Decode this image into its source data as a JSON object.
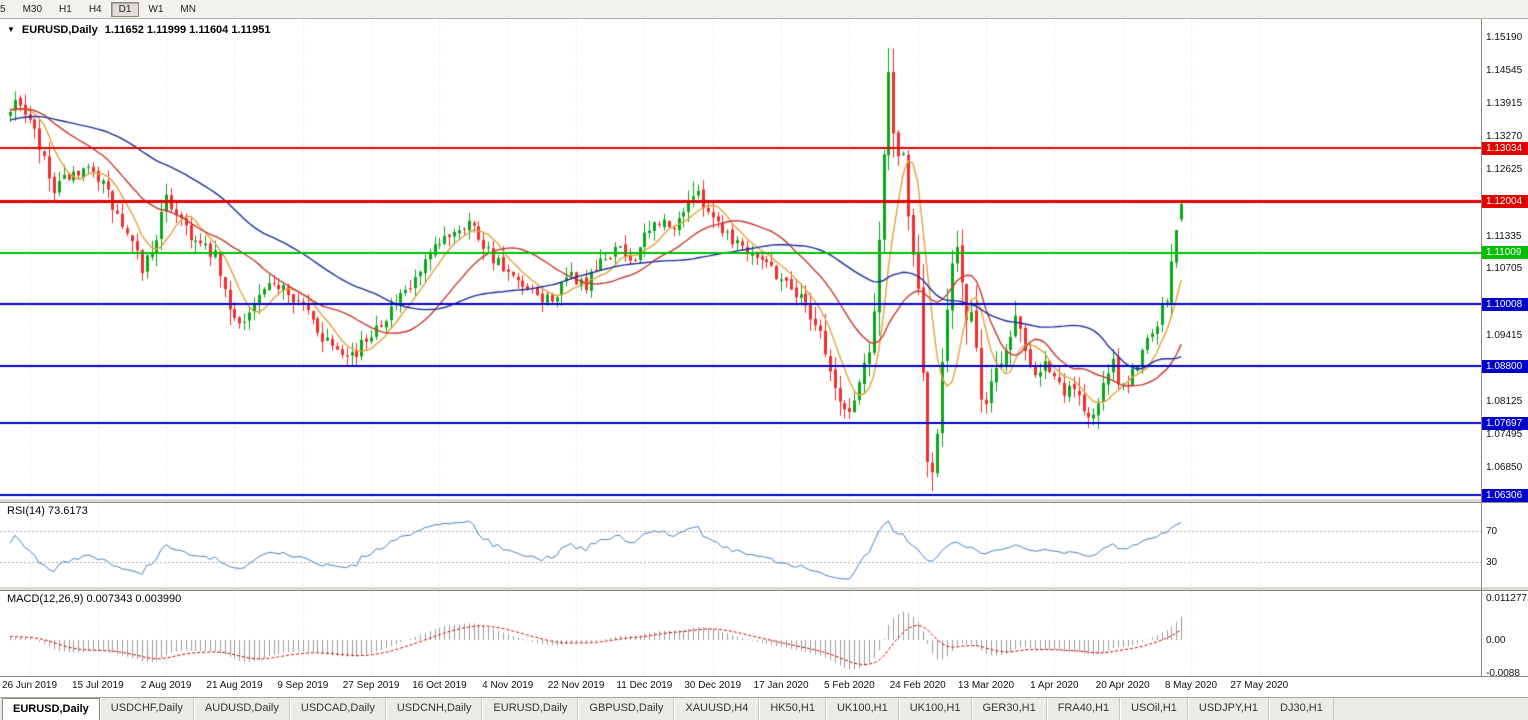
{
  "toolbar": {
    "items": [
      {
        "label": "5",
        "cut": true
      },
      {
        "label": "M30"
      },
      {
        "label": "H1"
      },
      {
        "label": "H4"
      },
      {
        "label": "D1",
        "active": true
      },
      {
        "label": "W1"
      },
      {
        "label": "MN"
      }
    ]
  },
  "chart_header": {
    "menu_icon": "▼",
    "symbol": "EURUSD,Daily",
    "ohlc": "1.11652 1.11999 1.11604 1.11951"
  },
  "indicators": {
    "rsi_label": "RSI(14) 73.6173",
    "macd_label": "MACD(12,26,9) 0.007343 0.003990",
    "macd_axis": [
      {
        "label": "0.011277",
        "value": 0.011277
      },
      {
        "label": "0.00",
        "value": 0
      },
      {
        "label": "-0.0088",
        "value": -0.0088
      }
    ]
  },
  "price_axis": {
    "ticks": [
      {
        "label": "1.15190",
        "price": 1.1519
      },
      {
        "label": "1.14545",
        "price": 1.14545
      },
      {
        "label": "1.13915",
        "price": 1.13915
      },
      {
        "label": "1.13270",
        "price": 1.1327
      },
      {
        "label": "1.12625",
        "price": 1.12625
      },
      {
        "label": "1.11335",
        "price": 1.11335
      },
      {
        "label": "1.10705",
        "price": 1.10705
      },
      {
        "label": "1.09415",
        "price": 1.09415
      },
      {
        "label": "1.08125",
        "price": 1.08125
      },
      {
        "label": "1.07495",
        "price": 1.07495
      },
      {
        "label": "1.06850",
        "price": 1.0685
      }
    ]
  },
  "colors": {
    "bull": "#0DA41A",
    "bear": "#EF2F2F",
    "grid": "#DCDCDC",
    "rsi": "#4A7FBE",
    "macd_hist": "#9A9A9A",
    "macd_signal": "#CC0000"
  },
  "chart_data": {
    "type": "candlestick",
    "symbol": "EURUSD",
    "timeframe": "Daily",
    "current_ohlc": {
      "open": 1.11652,
      "high": 1.11999,
      "low": 1.11604,
      "close": 1.11951
    },
    "price_range": {
      "top": 1.15539,
      "bottom": 1.06248
    },
    "seed": 7,
    "start_index": -50,
    "last_index": 240,
    "date_first_index": 4,
    "date_step": 14,
    "dates": [
      "26 Jun 2019",
      "15 Jul 2019",
      "2 Aug 2019",
      "21 Aug 2019",
      "9 Sep 2019",
      "27 Sep 2019",
      "16 Oct 2019",
      "4 Nov 2019",
      "22 Nov 2019",
      "11 Dec 2019",
      "30 Dec 2019",
      "17 Jan 2020",
      "5 Feb 2020",
      "24 Feb 2020",
      "13 Mar 2020",
      "1 Apr 2020",
      "20 Apr 2020",
      "8 May 2020",
      "27 May 2020"
    ],
    "levels": [
      {
        "price": 1.13034,
        "badge": "1.13034",
        "color": "#E00000",
        "width": 2
      },
      {
        "price": 1.12004,
        "badge": "1.12004",
        "color": "#E00000",
        "width": 3
      },
      {
        "price": 1.11009,
        "badge": "1.11009",
        "color": "#00BE00",
        "width": 2
      },
      {
        "price": 1.10008,
        "badge": "1.10008",
        "color": "#0000C8",
        "width": 2
      },
      {
        "price": 1.088,
        "badge": "1.08800",
        "color": "#0000C8",
        "width": 2
      },
      {
        "price": 1.07697,
        "badge": "1.07697",
        "color": "#0000C8",
        "width": 2
      },
      {
        "price": 1.06306,
        "badge": "1.06306",
        "color": "#0000C8",
        "width": 2
      }
    ],
    "moving_averages": [
      {
        "name": "fast",
        "period": 7,
        "color": "#E2A33C"
      },
      {
        "name": "mid",
        "period": 20,
        "color": "#C8392F"
      },
      {
        "name": "slow",
        "period": 45,
        "color": "#1C2D9C"
      }
    ],
    "rsi": {
      "period": 14,
      "levels": [
        70,
        30
      ],
      "current": 73.6173
    },
    "macd": {
      "fast": 12,
      "slow": 26,
      "signal": 9,
      "current_macd": 0.007343,
      "current_signal": 0.00399
    },
    "close_anchors": [
      [
        -50,
        1.128
      ],
      [
        -30,
        1.135
      ],
      [
        -15,
        1.139
      ],
      [
        -5,
        1.1375
      ],
      [
        0,
        1.1378
      ],
      [
        2,
        1.1393
      ],
      [
        5,
        1.133
      ],
      [
        9,
        1.1215
      ],
      [
        12,
        1.1252
      ],
      [
        14,
        1.1243
      ],
      [
        17,
        1.1268
      ],
      [
        20,
        1.121
      ],
      [
        24,
        1.113
      ],
      [
        27,
        1.1072
      ],
      [
        29,
        1.1105
      ],
      [
        32,
        1.12
      ],
      [
        35,
        1.117
      ],
      [
        38,
        1.112
      ],
      [
        42,
        1.1092
      ],
      [
        45,
        1.0985
      ],
      [
        48,
        1.0968
      ],
      [
        52,
        1.1025
      ],
      [
        56,
        1.1042
      ],
      [
        60,
        1.0995
      ],
      [
        64,
        1.094
      ],
      [
        68,
        1.0915
      ],
      [
        71,
        1.0902
      ],
      [
        74,
        1.095
      ],
      [
        78,
        1.099
      ],
      [
        82,
        1.103
      ],
      [
        86,
        1.109
      ],
      [
        90,
        1.114
      ],
      [
        94,
        1.1162
      ],
      [
        97,
        1.112
      ],
      [
        101,
        1.1065
      ],
      [
        105,
        1.103
      ],
      [
        109,
        1.101
      ],
      [
        112,
        1.1018
      ],
      [
        115,
        1.1055
      ],
      [
        118,
        1.1035
      ],
      [
        121,
        1.1078
      ],
      [
        124,
        1.111
      ],
      [
        127,
        1.1085
      ],
      [
        130,
        1.1125
      ],
      [
        133,
        1.1165
      ],
      [
        136,
        1.114
      ],
      [
        138,
        1.119
      ],
      [
        140,
        1.1215
      ],
      [
        142,
        1.12
      ],
      [
        145,
        1.116
      ],
      [
        148,
        1.113
      ],
      [
        151,
        1.1108
      ],
      [
        154,
        1.1095
      ],
      [
        157,
        1.106
      ],
      [
        160,
        1.1035
      ],
      [
        163,
        1.1
      ],
      [
        166,
        1.095
      ],
      [
        168,
        1.0868
      ],
      [
        170,
        1.0805
      ],
      [
        172,
        1.079
      ],
      [
        174,
        1.085
      ],
      [
        176,
        1.092
      ],
      [
        177,
        1.0995
      ],
      [
        178,
        1.113
      ],
      [
        179,
        1.129
      ],
      [
        180,
        1.144
      ],
      [
        181,
        1.134
      ],
      [
        182,
        1.127
      ],
      [
        183,
        1.1285
      ],
      [
        184,
        1.116
      ],
      [
        185,
        1.111
      ],
      [
        186,
        1.102
      ],
      [
        187,
        1.087
      ],
      [
        188,
        1.07
      ],
      [
        189,
        1.066
      ],
      [
        190,
        1.074
      ],
      [
        191,
        1.0895
      ],
      [
        192,
        1.1
      ],
      [
        193,
        1.109
      ],
      [
        194,
        1.1125
      ],
      [
        195,
        1.104
      ],
      [
        196,
        1.096
      ],
      [
        197,
        1.098
      ],
      [
        198,
        1.09
      ],
      [
        199,
        1.083
      ],
      [
        200,
        1.0805
      ],
      [
        202,
        1.088
      ],
      [
        204,
        1.0915
      ],
      [
        206,
        1.098
      ],
      [
        208,
        1.0925
      ],
      [
        210,
        1.087
      ],
      [
        212,
        1.0895
      ],
      [
        214,
        1.086
      ],
      [
        216,
        1.082
      ],
      [
        218,
        1.0845
      ],
      [
        220,
        1.08
      ],
      [
        222,
        1.0775
      ],
      [
        224,
        1.0845
      ],
      [
        226,
        1.088
      ],
      [
        228,
        1.0835
      ],
      [
        230,
        1.087
      ],
      [
        232,
        1.091
      ],
      [
        234,
        1.0955
      ],
      [
        236,
        1.099
      ],
      [
        237,
        1.101
      ],
      [
        238,
        1.108
      ],
      [
        239,
        1.114
      ],
      [
        240,
        1.11951
      ]
    ],
    "bar_overrides": {
      "140": {
        "h": 1.1239
      },
      "172": {
        "l": 1.0778
      },
      "180": {
        "h": 1.1498
      },
      "189": {
        "l": 1.0638
      },
      "222": {
        "l": 1.0766
      },
      "240": {
        "o": 1.11652,
        "h": 1.11999,
        "l": 1.11604,
        "c": 1.11951
      }
    }
  },
  "tabs": {
    "items": [
      {
        "label": "EURUSD,Daily",
        "active": true
      },
      {
        "label": "USDCHF,Daily"
      },
      {
        "label": "AUDUSD,Daily"
      },
      {
        "label": "USDCAD,Daily"
      },
      {
        "label": "USDCNH,Daily"
      },
      {
        "label": "EURUSD,Daily"
      },
      {
        "label": "GBPUSD,Daily"
      },
      {
        "label": "XAUUSD,H4"
      },
      {
        "label": "HK50,H1"
      },
      {
        "label": "UK100,H1"
      },
      {
        "label": "UK100,H1"
      },
      {
        "label": "GER30,H1"
      },
      {
        "label": "FRA40,H1"
      },
      {
        "label": "USOil,H1"
      },
      {
        "label": "USDJPY,H1"
      },
      {
        "label": "DJ30,H1"
      }
    ]
  }
}
